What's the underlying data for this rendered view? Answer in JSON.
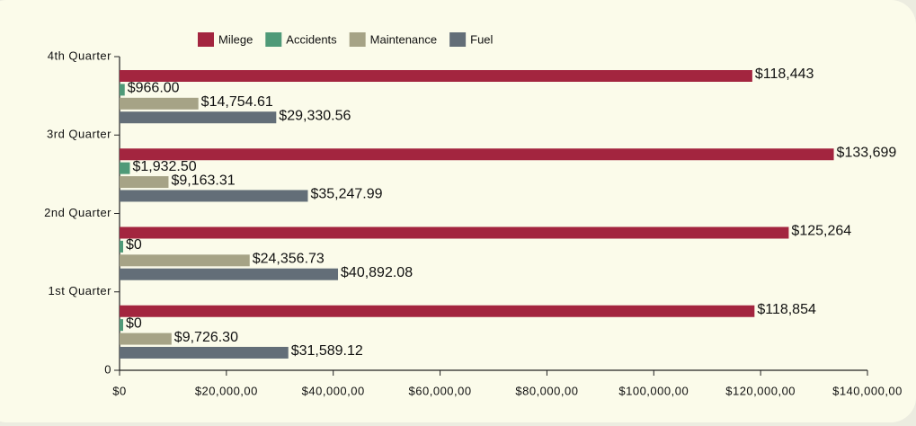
{
  "chart_data": {
    "type": "hbar",
    "categories": [
      "1st Quarter",
      "2nd Quarter",
      "3rd Quarter",
      "4th Quarter"
    ],
    "category_axis_origin_label": "0",
    "series": [
      {
        "name": "Milege",
        "color": "#a3253f",
        "values": [
          118854,
          125264,
          133699,
          118443
        ],
        "value_labels": [
          "$118,854",
          "$125,264",
          "$133,699",
          "$118,443"
        ]
      },
      {
        "name": "Accidents",
        "color": "#4f9a78",
        "values": [
          0,
          0,
          1932.5,
          966
        ],
        "value_labels": [
          "$0",
          "$0",
          "$1,932.50",
          "$966.00"
        ]
      },
      {
        "name": "Maintenance",
        "color": "#a6a386",
        "values": [
          9726.3,
          24356.73,
          9163.31,
          14754.61
        ],
        "value_labels": [
          "$9,726.30",
          "$24,356.73",
          "$9,163.31",
          "$14,754.61"
        ]
      },
      {
        "name": "Fuel",
        "color": "#636e78",
        "values": [
          31589.12,
          40892.08,
          35247.99,
          29330.56
        ],
        "value_labels": [
          "$31,589.12",
          "$40,892.08",
          "$35,247.99",
          "$29,330.56"
        ]
      }
    ],
    "xlim": [
      0,
      140000
    ],
    "xticks": [
      {
        "value": 0,
        "label": "$0"
      },
      {
        "value": 20000,
        "label": "$20,000,00"
      },
      {
        "value": 40000,
        "label": "$40,000,00"
      },
      {
        "value": 60000,
        "label": "$60,000,00"
      },
      {
        "value": 80000,
        "label": "$80,000,00"
      },
      {
        "value": 100000,
        "label": "$100,000,00"
      },
      {
        "value": 120000,
        "label": "$120,000,00"
      },
      {
        "value": 140000,
        "label": "$140,000,00"
      }
    ],
    "legend": "top"
  }
}
